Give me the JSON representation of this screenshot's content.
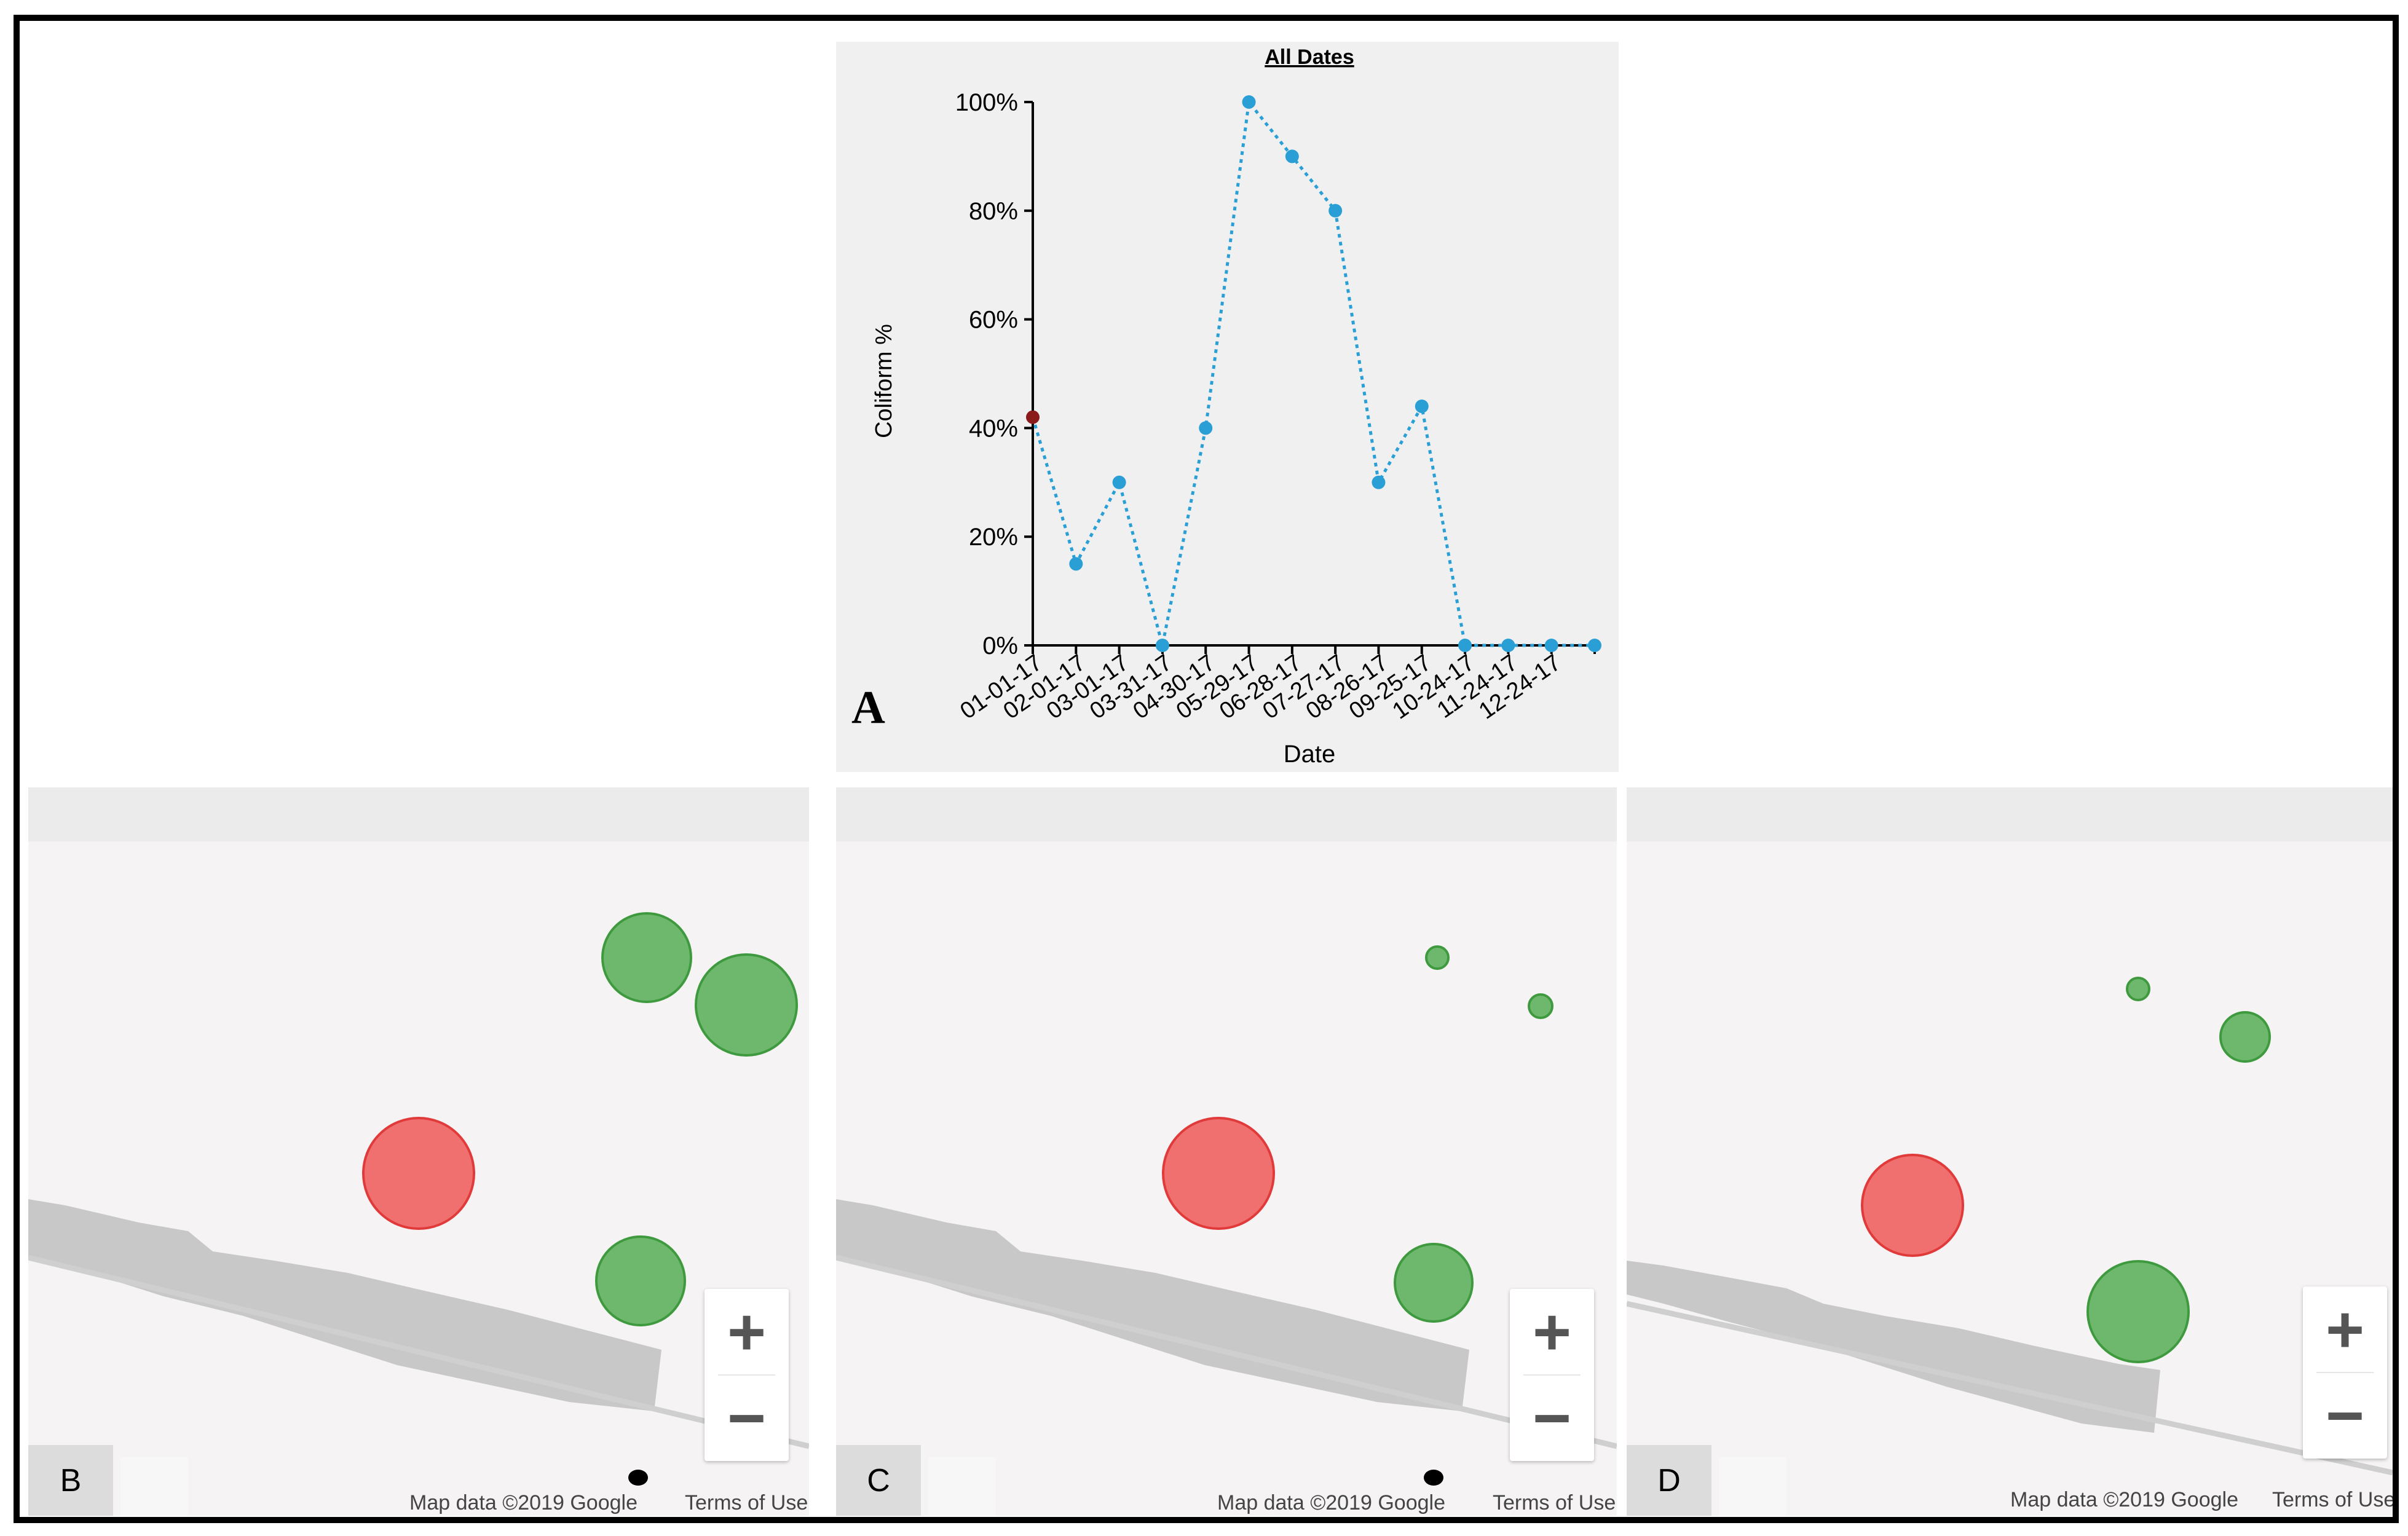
{
  "chart_data": {
    "type": "line",
    "title": "All Dates",
    "xlabel": "Date",
    "ylabel": "Coliform %",
    "ylim": [
      0,
      100
    ],
    "yticks": [
      "0%",
      "20%",
      "40%",
      "60%",
      "80%",
      "100%"
    ],
    "tick_labels": [
      "01-01-17",
      "02-01-17",
      "03-01-17",
      "03-31-17",
      "04-30-17",
      "05-29-17",
      "06-28-17",
      "07-27-17",
      "08-26-17",
      "09-25-17",
      "10-24-17",
      "11-24-17",
      "12-24-17"
    ],
    "series": [
      {
        "name": "Coliform %",
        "values": [
          42,
          15,
          30,
          0,
          40,
          100,
          90,
          80,
          30,
          44,
          0,
          0,
          0,
          0
        ],
        "highlight_index": 0,
        "color": "#2a9fd6",
        "highlight_color": "#8b1a1a"
      }
    ]
  },
  "panel_label_a": "A",
  "maps": [
    {
      "label": "B",
      "attribution": "Map data ©2019 Google",
      "terms": "Terms of Use",
      "zoom_in": "+",
      "zoom_out": "−",
      "circles": [
        {
          "status": "red",
          "size": "large"
        },
        {
          "status": "green",
          "size": "large"
        },
        {
          "status": "green",
          "size": "large"
        },
        {
          "status": "green",
          "size": "large"
        }
      ]
    },
    {
      "label": "C",
      "attribution": "Map data ©2019 Google",
      "terms": "Terms of Use",
      "zoom_in": "+",
      "zoom_out": "−",
      "circles": [
        {
          "status": "red",
          "size": "large"
        },
        {
          "status": "green",
          "size": "small"
        },
        {
          "status": "green",
          "size": "small"
        },
        {
          "status": "green",
          "size": "large"
        }
      ]
    },
    {
      "label": "D",
      "attribution": "Map data ©2019 Google",
      "terms": "Terms of Use",
      "zoom_in": "+",
      "zoom_out": "−",
      "circles": [
        {
          "status": "red",
          "size": "large"
        },
        {
          "status": "green",
          "size": "small"
        },
        {
          "status": "green",
          "size": "medium"
        },
        {
          "status": "green",
          "size": "large"
        }
      ]
    }
  ],
  "colors": {
    "red_fill": "#f07070",
    "red_stroke": "#e03a3a",
    "green_fill": "#6db86d",
    "green_stroke": "#3f9a3f",
    "road": "#c8c8c8"
  }
}
